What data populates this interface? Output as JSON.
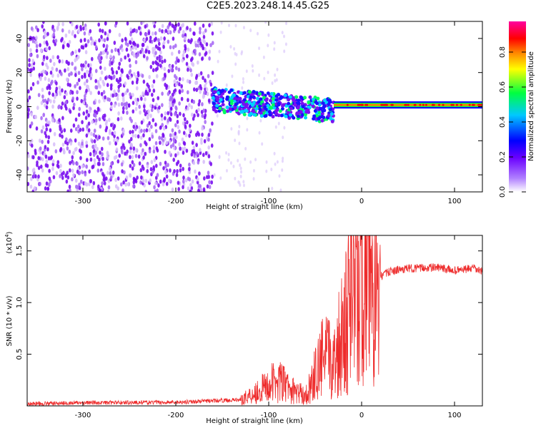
{
  "title": "C2E5.2023.248.14.45.G25",
  "colorbar": {
    "label": "Normalized spectral amplitude",
    "ticks": [
      "0.0",
      "0.2",
      "0.4",
      "0.6",
      "0.8"
    ]
  },
  "chart_data": [
    {
      "type": "heatmap",
      "xlabel": "Height of straight line (km)",
      "ylabel": "Frequency (Hz)",
      "xlim": [
        -360,
        130
      ],
      "ylim": [
        -50,
        50
      ],
      "xticks": [
        -300,
        -200,
        -100,
        0,
        100
      ],
      "yticks": [
        -40,
        -20,
        0,
        20,
        40
      ],
      "xtick_labels": [
        "-300",
        "-200",
        "-100",
        "0",
        "100"
      ],
      "ytick_labels": [
        "-40",
        "-20",
        "0",
        "20",
        "40"
      ],
      "colormap": [
        "#ffffff",
        "#7a00ff",
        "#0000ff",
        "#00c8ff",
        "#00ff40",
        "#ffff00",
        "#ff8000",
        "#ff0000",
        "#ff00a0"
      ],
      "regions": [
        {
          "x": [
            -360,
            -160
          ],
          "freq": [
            -50,
            50
          ],
          "amplitude": 0.08
        },
        {
          "x": [
            -160,
            -30
          ],
          "freq": [
            -15,
            12
          ],
          "amplitude": 0.25
        },
        {
          "x": [
            -30,
            130
          ],
          "freq": [
            -1,
            3
          ],
          "amplitude": 0.75
        }
      ]
    },
    {
      "type": "line",
      "xlabel": "Height of straight line (km)",
      "ylabel": "SNR (10 * v/v)",
      "yscale_label": "(x10",
      "yscale_exp": "4",
      "xlim": [
        -360,
        130
      ],
      "ylim": [
        0,
        16500
      ],
      "xticks": [
        -300,
        -200,
        -100,
        0,
        100
      ],
      "yticks": [
        5000,
        10000,
        15000
      ],
      "xtick_labels": [
        "-300",
        "-200",
        "-100",
        "0",
        "100"
      ],
      "ytick_labels": [
        "0.5",
        "1.0",
        "1.5"
      ],
      "color": "#ee2b2b",
      "x": [
        -360,
        -300,
        -200,
        -130,
        -110,
        -100,
        -90,
        -75,
        -60,
        -50,
        -40,
        -30,
        -20,
        -15,
        -10,
        -5,
        0,
        10,
        20,
        30,
        50,
        80,
        100,
        120,
        130
      ],
      "y": [
        200,
        300,
        350,
        600,
        1500,
        2000,
        2500,
        1500,
        1000,
        3000,
        5000,
        4000,
        8000,
        9000,
        11000,
        10000,
        11000,
        13000,
        12500,
        13000,
        13300,
        13400,
        13100,
        13300,
        13000
      ]
    }
  ]
}
